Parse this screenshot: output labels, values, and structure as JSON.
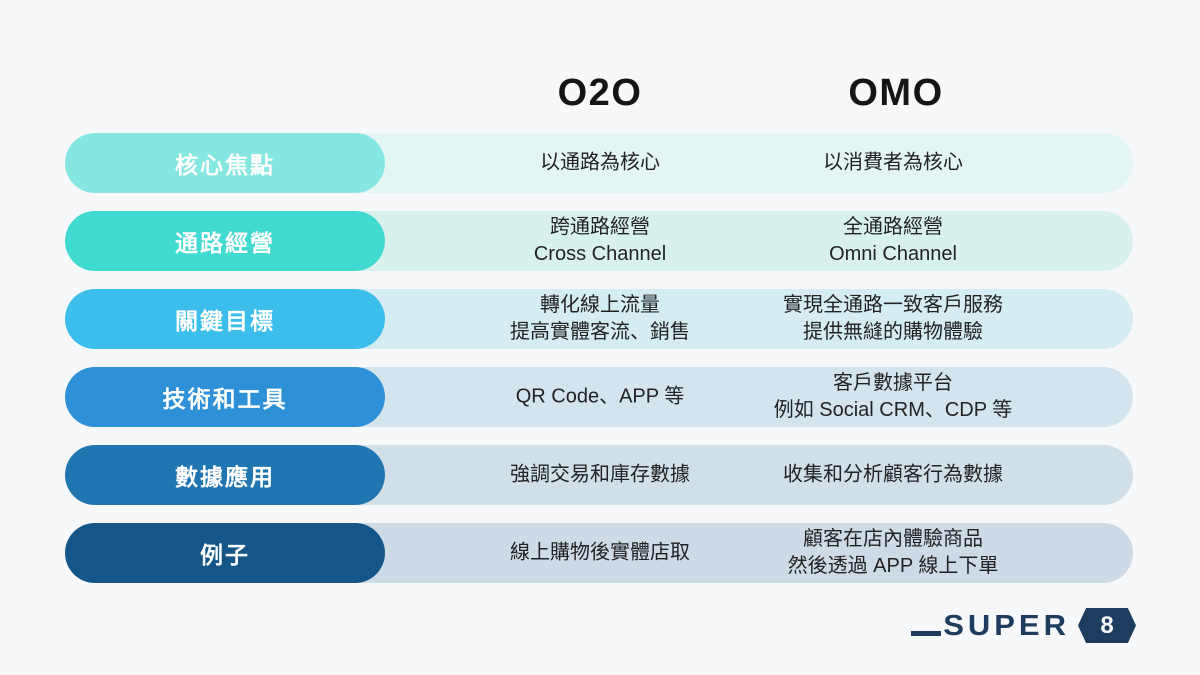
{
  "page": {
    "background": "#F6F8F9"
  },
  "header": {
    "col_left": "O2O",
    "col_right": "OMO"
  },
  "rows": [
    {
      "label": "核心焦點",
      "pill_color": "#85E6E2",
      "band_color": "#E3F6F4",
      "o2o": [
        "以通路為核心"
      ],
      "omo": [
        "以消費者為核心"
      ]
    },
    {
      "label": "通路經營",
      "pill_color": "#41DAD1",
      "band_color": "#D8F1ED",
      "o2o": [
        "跨通路經營",
        "Cross Channel"
      ],
      "omo": [
        "全通路經營",
        "Omni Channel"
      ]
    },
    {
      "label": "關鍵目標",
      "pill_color": "#3BBEEC",
      "band_color": "#D5ECF3",
      "o2o": [
        "轉化線上流量",
        "提高實體客流、銷售"
      ],
      "omo": [
        "實現全通路一致客戶服務",
        "提供無縫的購物體驗"
      ]
    },
    {
      "label": "技術和工具",
      "pill_color": "#2E90D6",
      "band_color": "#D4E4EF",
      "o2o": [
        "QR Code、APP 等"
      ],
      "omo": [
        "客戶數據平台",
        "例如 Social CRM、CDP 等"
      ]
    },
    {
      "label": "數據應用",
      "pill_color": "#2176B2",
      "band_color": "#D1DFE9",
      "o2o": [
        "強調交易和庫存數據"
      ],
      "omo": [
        "收集和分析顧客行為數據"
      ]
    },
    {
      "label": "例子",
      "pill_color": "#135687",
      "band_color": "#CEDAE5",
      "o2o": [
        "線上購物後實體店取"
      ],
      "omo": [
        "顧客在店內體驗商品",
        "然後透過 APP 線上下單"
      ]
    }
  ],
  "logo": {
    "brand": "SUPER",
    "badge": "8",
    "color": "#1D3C5E"
  }
}
